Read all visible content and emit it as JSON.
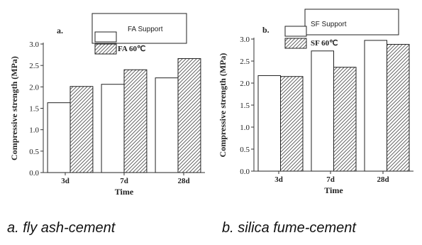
{
  "chart_data": [
    {
      "type": "bar",
      "panel_label": "a.",
      "categories": [
        "3d",
        "7d",
        "28d"
      ],
      "series": [
        {
          "name": "FA Support",
          "values": [
            1.63,
            2.06,
            2.21
          ],
          "fill": "plain"
        },
        {
          "name": "FA 60℃",
          "values": [
            2.01,
            2.4,
            2.66
          ],
          "fill": "hatched"
        }
      ],
      "xlabel": "Time",
      "ylabel": "Compressive strength (MPa)",
      "ylim": [
        0,
        3.0
      ],
      "yticks": [
        "0.0",
        "0.5",
        "1.0",
        "1.5",
        "2.0",
        "2.5",
        "3.0"
      ],
      "grid": false,
      "legend": "top"
    },
    {
      "type": "bar",
      "panel_label": "b.",
      "categories": [
        "3d",
        "7d",
        "28d"
      ],
      "series": [
        {
          "name": "SF Support",
          "values": [
            2.17,
            2.73,
            2.97
          ],
          "fill": "plain"
        },
        {
          "name": "SF 60℃",
          "values": [
            2.15,
            2.36,
            2.88
          ],
          "fill": "hatched"
        }
      ],
      "xlabel": "Time",
      "ylabel": "Compressive strength (MPa)",
      "ylim": [
        0,
        3.0
      ],
      "yticks": [
        "0.0",
        "0.5",
        "1.0",
        "1.5",
        "2.0",
        "2.5",
        "3.0"
      ],
      "grid": false,
      "legend": "top"
    }
  ],
  "captions": {
    "a": "a. fly ash-cement",
    "b": "b. silica fume-cement"
  },
  "colors": {
    "axis": "#333333",
    "bar_stroke": "#222222",
    "hatch": "#555555"
  }
}
